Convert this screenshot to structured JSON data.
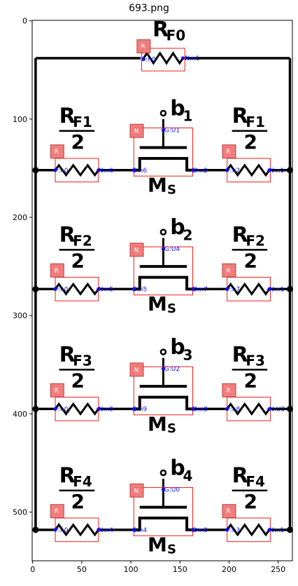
{
  "figure": {
    "title": "693.png",
    "x_ticks": [
      "0",
      "50",
      "100",
      "150",
      "200",
      "250"
    ],
    "y_ticks": [
      "0",
      "100",
      "200",
      "300",
      "400",
      "500"
    ],
    "colors": {
      "wire": "#000000",
      "box": "#ee1c1c",
      "badge_fill": "#f07070",
      "pin": "#1010ee"
    }
  },
  "feedback_resistor": {
    "symbol": "R",
    "subscript": "F0",
    "badge": "R",
    "pin_left": "P:n0",
    "pin_right": "N:n1"
  },
  "stages": [
    {
      "rf_sub": "F1",
      "half": "2",
      "bit": "b",
      "bit_sub": "1",
      "ms": "M",
      "ms_sub": "S",
      "gate_pin": "G:U1",
      "left_badge": "R",
      "mos_badge": "N",
      "right_badge": "R",
      "pins": [
        "P:n0",
        "N:n6",
        "S:n6",
        "D:n2",
        "P:n2",
        "N:n1"
      ]
    },
    {
      "rf_sub": "F2",
      "half": "2",
      "bit": "b",
      "bit_sub": "2",
      "ms": "M",
      "ms_sub": "S",
      "gate_pin": "G:U4",
      "left_badge": "R",
      "mos_badge": "N",
      "right_badge": "R",
      "pins": [
        "P:n0",
        "N:n5",
        "S:n5",
        "D:n7",
        "P:n7",
        "N:n1"
      ]
    },
    {
      "rf_sub": "F3",
      "half": "2",
      "bit": "b",
      "bit_sub": "3",
      "ms": "M",
      "ms_sub": "S",
      "gate_pin": "G:U2",
      "left_badge": "R",
      "mos_badge": "N",
      "right_badge": "R",
      "pins": [
        "P:n0",
        "N:n9",
        "S:n9",
        "D:n8",
        "P:n8",
        "N:U3"
      ]
    },
    {
      "rf_sub": "F4",
      "half": "2",
      "bit": "b",
      "bit_sub": "4",
      "ms": "M",
      "ms_sub": "S",
      "gate_pin": "G:U0",
      "left_badge": "R",
      "mos_badge": "N",
      "right_badge": "R",
      "pins": [
        "P:n0",
        "N:n4",
        "S:n4",
        "D:n3",
        "P:n3",
        "N:n1"
      ]
    }
  ]
}
